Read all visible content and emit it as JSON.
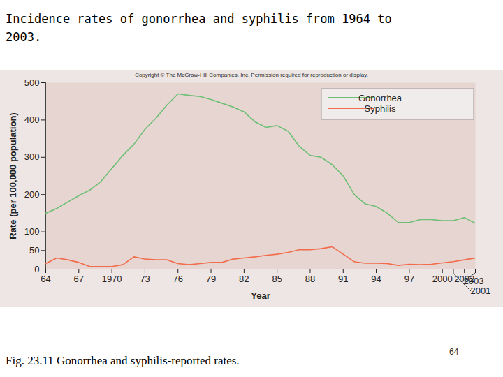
{
  "chart_data": {
    "type": "line",
    "title": "Incidence rates of gonorrhea and syphilis from 1964 to 2003.",
    "copyright": "Copyright © The McGraw-Hill Companies, Inc. Permission required for reproduction or display.",
    "caption": "Fig. 23.11 Gonorrhea and syphilis-reported rates.",
    "page_number": 64,
    "x_label": "Year",
    "y_label": "Rate (per 100,000 population)",
    "x": [
      1964,
      1965,
      1966,
      1967,
      1968,
      1969,
      1970,
      1971,
      1972,
      1973,
      1974,
      1975,
      1976,
      1977,
      1978,
      1979,
      1980,
      1981,
      1982,
      1983,
      1984,
      1985,
      1986,
      1987,
      1988,
      1989,
      1990,
      1991,
      1992,
      1993,
      1994,
      1995,
      1996,
      1997,
      1998,
      1999,
      2000,
      2001,
      2002,
      2003
    ],
    "series": [
      {
        "name": "Gonorrhea",
        "color": "#6cbf74",
        "values": [
          150,
          163,
          180,
          197,
          212,
          235,
          270,
          305,
          335,
          375,
          405,
          440,
          470,
          466,
          463,
          455,
          445,
          435,
          422,
          395,
          380,
          385,
          370,
          330,
          305,
          300,
          280,
          250,
          200,
          175,
          168,
          150,
          125,
          125,
          133,
          133,
          130,
          130,
          138,
          123
        ]
      },
      {
        "name": "Syphilis",
        "color": "#f26b4a",
        "values": [
          15,
          30,
          25,
          18,
          7,
          7,
          7,
          12,
          33,
          27,
          25,
          25,
          15,
          12,
          15,
          18,
          18,
          27,
          30,
          33,
          37,
          40,
          45,
          52,
          52,
          55,
          60,
          40,
          20,
          16,
          16,
          15,
          10,
          13,
          12,
          13,
          17,
          20,
          25,
          30
        ]
      }
    ],
    "xlim": [
      1964,
      2003
    ],
    "xticks": [
      {
        "value": 1964,
        "label": "64"
      },
      {
        "value": 1967,
        "label": "67"
      },
      1970,
      {
        "value": 1973,
        "label": "73"
      },
      {
        "value": 1976,
        "label": "76"
      },
      {
        "value": 1979,
        "label": "79"
      },
      {
        "value": 1982,
        "label": "82"
      },
      {
        "value": 1985,
        "label": "85"
      },
      {
        "value": 1988,
        "label": "88"
      },
      {
        "value": 1991,
        "label": "91"
      },
      {
        "value": 1994,
        "label": "94"
      },
      {
        "value": 1997,
        "label": "97"
      },
      2000,
      2001,
      2002,
      2003
    ],
    "ylim": [
      0,
      500
    ],
    "yticks": [
      0,
      50,
      100,
      200,
      300,
      400,
      500
    ],
    "grid": false,
    "legend": "top-right"
  }
}
